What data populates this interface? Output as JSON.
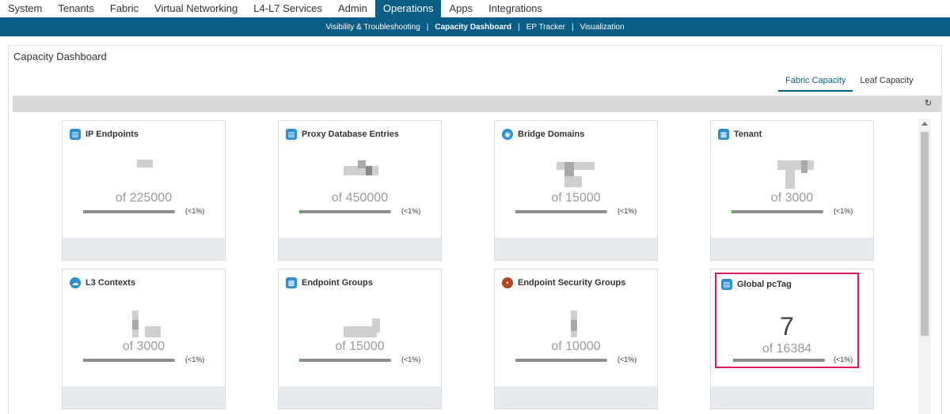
{
  "nav": {
    "tabs": [
      "System",
      "Tenants",
      "Fabric",
      "Virtual Networking",
      "L4-L7 Services",
      "Admin",
      "Operations",
      "Apps",
      "Integrations"
    ],
    "active": "Operations"
  },
  "subnav": {
    "items": [
      "Visibility & Troubleshooting",
      "Capacity Dashboard",
      "EP Tracker",
      "Visualization"
    ],
    "active": "Capacity Dashboard"
  },
  "page": {
    "title": "Capacity Dashboard"
  },
  "view_tabs": {
    "fabric": "Fabric Capacity",
    "leaf": "Leaf Capacity"
  },
  "cards": [
    {
      "title": "IP Endpoints",
      "of": "of 225000",
      "pct": "(<1%)",
      "usage": 0.005,
      "icon": "document-icon",
      "color": "#2b8fd6"
    },
    {
      "title": "Proxy Database Entries",
      "of": "of 450000",
      "pct": "(<1%)",
      "usage": 0.005,
      "icon": "document-icon",
      "color": "#2b8fd6"
    },
    {
      "title": "Bridge Domains",
      "of": "of 15000",
      "pct": "(<1%)",
      "usage": 0.005,
      "icon": "bridge-domain-icon",
      "color": "#2b8fd6"
    },
    {
      "title": "Tenant",
      "of": "of 3000",
      "pct": "(<1%)",
      "usage": 0.005,
      "icon": "building-icon",
      "color": "#2b8fd6"
    },
    {
      "title": "L3 Contexts",
      "of": "of 3000",
      "pct": "(<1%)",
      "usage": 0.005,
      "icon": "cloud-icon",
      "color": "#2b8fd6"
    },
    {
      "title": "Endpoint Groups",
      "of": "of 15000",
      "pct": "(<1%)",
      "usage": 0.005,
      "icon": "endpoint-groups-icon",
      "color": "#2b8fd6"
    },
    {
      "title": "Endpoint Security Groups",
      "of": "of 10000",
      "pct": "(<1%)",
      "usage": 0.005,
      "icon": "esg-icon",
      "color": "#b5461f"
    },
    {
      "title": "Global pcTag",
      "value": "7",
      "of": "of 16384",
      "pct": "(<1%)",
      "usage": 0.005,
      "icon": "document-icon",
      "color": "#2b8fd6"
    }
  ],
  "icons": {
    "refresh": "refresh-icon",
    "scroll_up": "scroll-up-arrow-icon"
  },
  "colors": {
    "nav_blue": "#0a5d85",
    "highlight": "#d81b60"
  }
}
